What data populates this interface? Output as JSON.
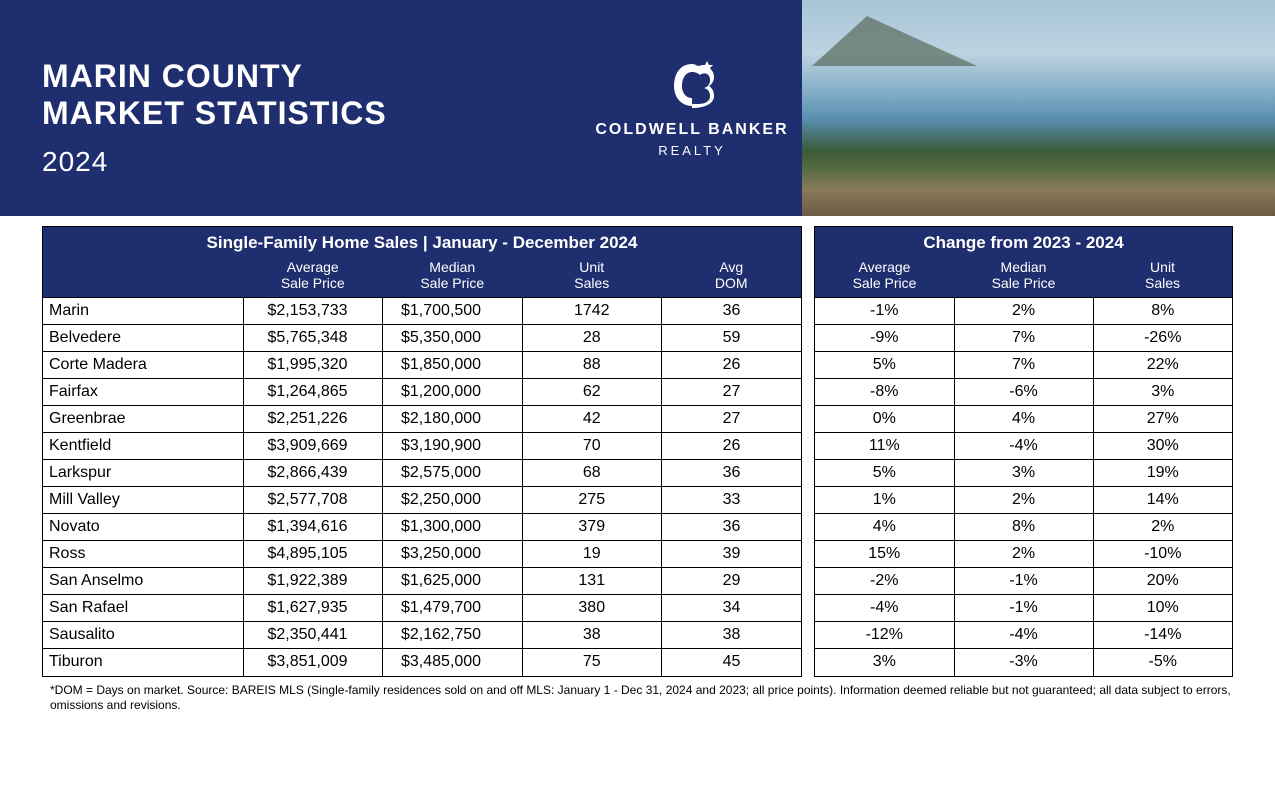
{
  "header": {
    "title_line1": "MARIN COUNTY",
    "title_line2": "MARKET STATISTICS",
    "year": "2024",
    "logo_brand": "COLDWELL BANKER",
    "logo_sub": "REALTY"
  },
  "colors": {
    "header_bg": "#1e2e6e",
    "header_text": "#ffffff",
    "table_border": "#000000",
    "body_bg": "#ffffff"
  },
  "typography": {
    "title_fontsize": 32,
    "title_weight": 700,
    "year_fontsize": 28,
    "panel_title_fontsize": 17,
    "table_header_fontsize": 14,
    "cell_fontsize": 16,
    "footnote_fontsize": 12,
    "font_family": "Arial, Helvetica, sans-serif"
  },
  "left_table": {
    "title": "Single-Family Home Sales | January - December 2024",
    "columns": [
      "",
      "Average\nSale Price",
      "Median\nSale Price",
      "Unit\nSales",
      "Avg\nDOM"
    ],
    "rows": [
      [
        "Marin",
        "$2,153,733",
        "$1,700,500",
        "1742",
        "36"
      ],
      [
        "Belvedere",
        "$5,765,348",
        "$5,350,000",
        "28",
        "59"
      ],
      [
        "Corte Madera",
        "$1,995,320",
        "$1,850,000",
        "88",
        "26"
      ],
      [
        "Fairfax",
        "$1,264,865",
        "$1,200,000",
        "62",
        "27"
      ],
      [
        "Greenbrae",
        "$2,251,226",
        "$2,180,000",
        "42",
        "27"
      ],
      [
        "Kentfield",
        "$3,909,669",
        "$3,190,900",
        "70",
        "26"
      ],
      [
        "Larkspur",
        "$2,866,439",
        "$2,575,000",
        "68",
        "36"
      ],
      [
        "Mill Valley",
        "$2,577,708",
        "$2,250,000",
        "275",
        "33"
      ],
      [
        "Novato",
        "$1,394,616",
        "$1,300,000",
        "379",
        "36"
      ],
      [
        "Ross",
        "$4,895,105",
        "$3,250,000",
        "19",
        "39"
      ],
      [
        "San Anselmo",
        "$1,922,389",
        "$1,625,000",
        "131",
        "29"
      ],
      [
        "San Rafael",
        "$1,627,935",
        "$1,479,700",
        "380",
        "34"
      ],
      [
        "Sausalito",
        "$2,350,441",
        "$2,162,750",
        "38",
        "38"
      ],
      [
        "Tiburon",
        "$3,851,009",
        "$3,485,000",
        "75",
        "45"
      ]
    ]
  },
  "right_table": {
    "title": "Change from 2023 - 2024",
    "columns": [
      "Average\nSale Price",
      "Median\nSale Price",
      "Unit\nSales"
    ],
    "rows": [
      [
        "-1%",
        "2%",
        "8%"
      ],
      [
        "-9%",
        "7%",
        "-26%"
      ],
      [
        "5%",
        "7%",
        "22%"
      ],
      [
        "-8%",
        "-6%",
        "3%"
      ],
      [
        "0%",
        "4%",
        "27%"
      ],
      [
        "11%",
        "-4%",
        "30%"
      ],
      [
        "5%",
        "3%",
        "19%"
      ],
      [
        "1%",
        "2%",
        "14%"
      ],
      [
        "4%",
        "8%",
        "2%"
      ],
      [
        "15%",
        "2%",
        "-10%"
      ],
      [
        "-2%",
        "-1%",
        "20%"
      ],
      [
        "-4%",
        "-1%",
        "10%"
      ],
      [
        "-12%",
        "-4%",
        "-14%"
      ],
      [
        "3%",
        "-3%",
        "-5%"
      ]
    ]
  },
  "footnote": "*DOM = Days on market. Source: BAREIS MLS (Single-family residences sold on and off MLS: January 1 - Dec 31, 2024 and 2023; all price points). Information deemed reliable but not guaranteed; all data subject to errors, omissions and revisions."
}
